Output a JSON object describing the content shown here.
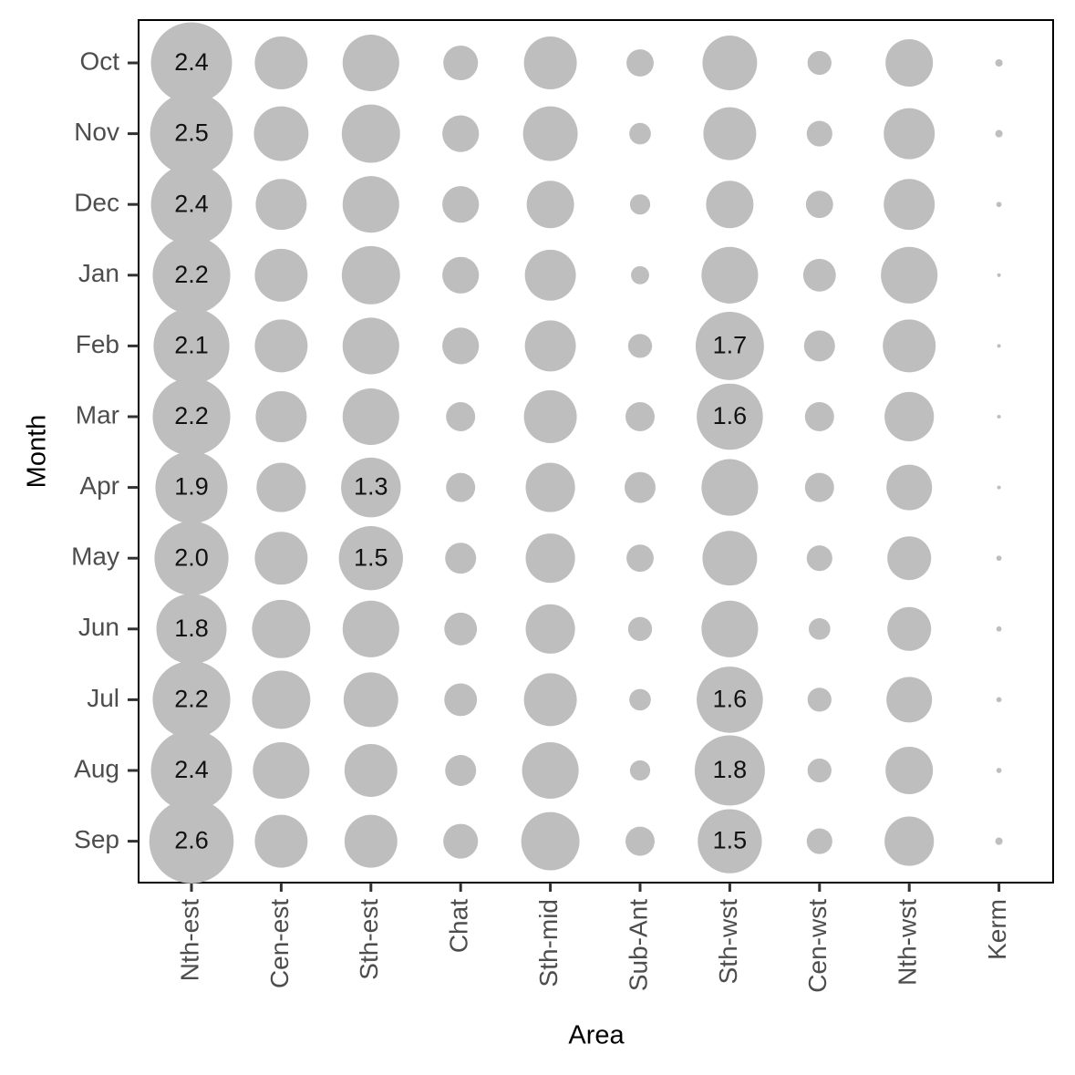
{
  "chart_data": {
    "type": "bubble-grid",
    "x_label": "Area",
    "y_label": "Month",
    "x_categories": [
      "Nth-est",
      "Cen-est",
      "Sth-est",
      "Chat",
      "Sth-mid",
      "Sub-Ant",
      "Sth-wst",
      "Cen-wst",
      "Nth-wst",
      "Kerm"
    ],
    "y_categories": [
      "Oct",
      "Nov",
      "Dec",
      "Jan",
      "Feb",
      "Mar",
      "Apr",
      "May",
      "Jun",
      "Jul",
      "Aug",
      "Sep"
    ],
    "color": "#bebebe",
    "values": [
      [
        2.4,
        1.02,
        1.17,
        0.44,
        1.02,
        0.27,
        1.09,
        0.21,
        0.82,
        0.02
      ],
      [
        2.5,
        1.09,
        1.24,
        0.49,
        1.09,
        0.17,
        1.02,
        0.24,
        0.95,
        0.02
      ],
      [
        2.4,
        0.95,
        1.17,
        0.49,
        0.82,
        0.15,
        0.82,
        0.27,
        0.95,
        0.01
      ],
      [
        2.2,
        1.02,
        1.24,
        0.49,
        0.95,
        0.12,
        1.17,
        0.39,
        1.17,
        0.005
      ],
      [
        2.1,
        1.02,
        1.17,
        0.49,
        0.95,
        0.21,
        1.7,
        0.35,
        1.02,
        0.005
      ],
      [
        2.2,
        0.95,
        1.17,
        0.31,
        1.02,
        0.31,
        1.6,
        0.31,
        0.89,
        0.005
      ],
      [
        1.9,
        0.89,
        1.3,
        0.31,
        0.89,
        0.35,
        1.17,
        0.31,
        0.76,
        0.005
      ],
      [
        2.0,
        1.02,
        1.5,
        0.35,
        0.89,
        0.27,
        1.09,
        0.24,
        0.7,
        0.01
      ],
      [
        1.8,
        1.24,
        1.17,
        0.39,
        0.89,
        0.21,
        1.17,
        0.17,
        0.7,
        0.01
      ],
      [
        2.2,
        1.24,
        1.09,
        0.39,
        1.02,
        0.17,
        1.6,
        0.21,
        0.76,
        0.01
      ],
      [
        2.4,
        1.17,
        1.02,
        0.35,
        1.17,
        0.15,
        1.8,
        0.21,
        0.82,
        0.01
      ],
      [
        2.6,
        1.02,
        1.02,
        0.44,
        1.24,
        0.31,
        1.5,
        0.24,
        0.89,
        0.02
      ]
    ],
    "value_labels": [
      [
        "2.4",
        null,
        null,
        null,
        null,
        null,
        null,
        null,
        null,
        null
      ],
      [
        "2.5",
        null,
        null,
        null,
        null,
        null,
        null,
        null,
        null,
        null
      ],
      [
        "2.4",
        null,
        null,
        null,
        null,
        null,
        null,
        null,
        null,
        null
      ],
      [
        "2.2",
        null,
        null,
        null,
        null,
        null,
        null,
        null,
        null,
        null
      ],
      [
        "2.1",
        null,
        null,
        null,
        null,
        null,
        "1.7",
        null,
        null,
        null
      ],
      [
        "2.2",
        null,
        null,
        null,
        null,
        null,
        "1.6",
        null,
        null,
        null
      ],
      [
        "1.9",
        null,
        "1.3",
        null,
        null,
        null,
        null,
        null,
        null,
        null
      ],
      [
        "2.0",
        null,
        "1.5",
        null,
        null,
        null,
        null,
        null,
        null,
        null
      ],
      [
        "1.8",
        null,
        null,
        null,
        null,
        null,
        null,
        null,
        null,
        null
      ],
      [
        "2.2",
        null,
        null,
        null,
        null,
        null,
        "1.6",
        null,
        null,
        null
      ],
      [
        "2.4",
        null,
        null,
        null,
        null,
        null,
        "1.8",
        null,
        null,
        null
      ],
      [
        "2.6",
        null,
        null,
        null,
        null,
        null,
        "1.5",
        null,
        null,
        null
      ]
    ]
  }
}
